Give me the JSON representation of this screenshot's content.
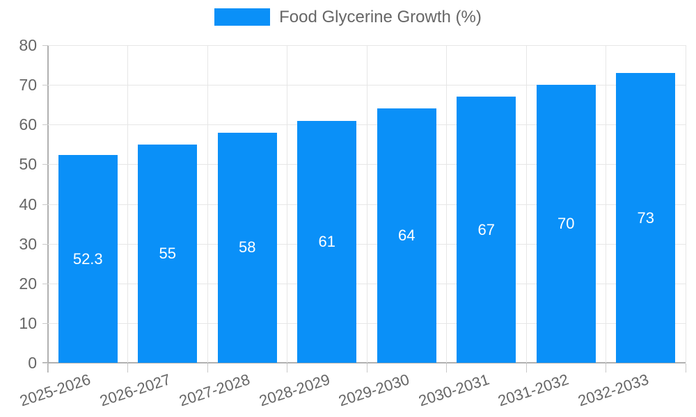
{
  "chart_data": {
    "type": "bar",
    "title": "Food Glycerine Growth (%)",
    "legend": {
      "label": "Food Glycerine Growth (%)",
      "position": "top"
    },
    "categories": [
      "2025-2026",
      "2026-2027",
      "2027-2028",
      "2028-2029",
      "2029-2030",
      "2030-2031",
      "2031-2032",
      "2032-2033"
    ],
    "values": [
      52.3,
      55,
      58,
      61,
      64,
      67,
      70,
      73
    ],
    "bar_labels": [
      "52.3",
      "55",
      "58",
      "61",
      "64",
      "67",
      "70",
      "73"
    ],
    "xlabel": "",
    "ylabel": "",
    "ylim": [
      0,
      80
    ],
    "yticks": [
      0,
      10,
      20,
      30,
      40,
      50,
      60,
      70,
      80
    ],
    "grid": "both",
    "colors": {
      "bar": "#0a90f8",
      "axis_text": "#666666",
      "grid_line": "#e6e6e6",
      "axis_line": "#b0b0b0",
      "tick_line": "#c9c9c9",
      "bar_value_text": "#ffffff",
      "background": "#ffffff"
    }
  }
}
